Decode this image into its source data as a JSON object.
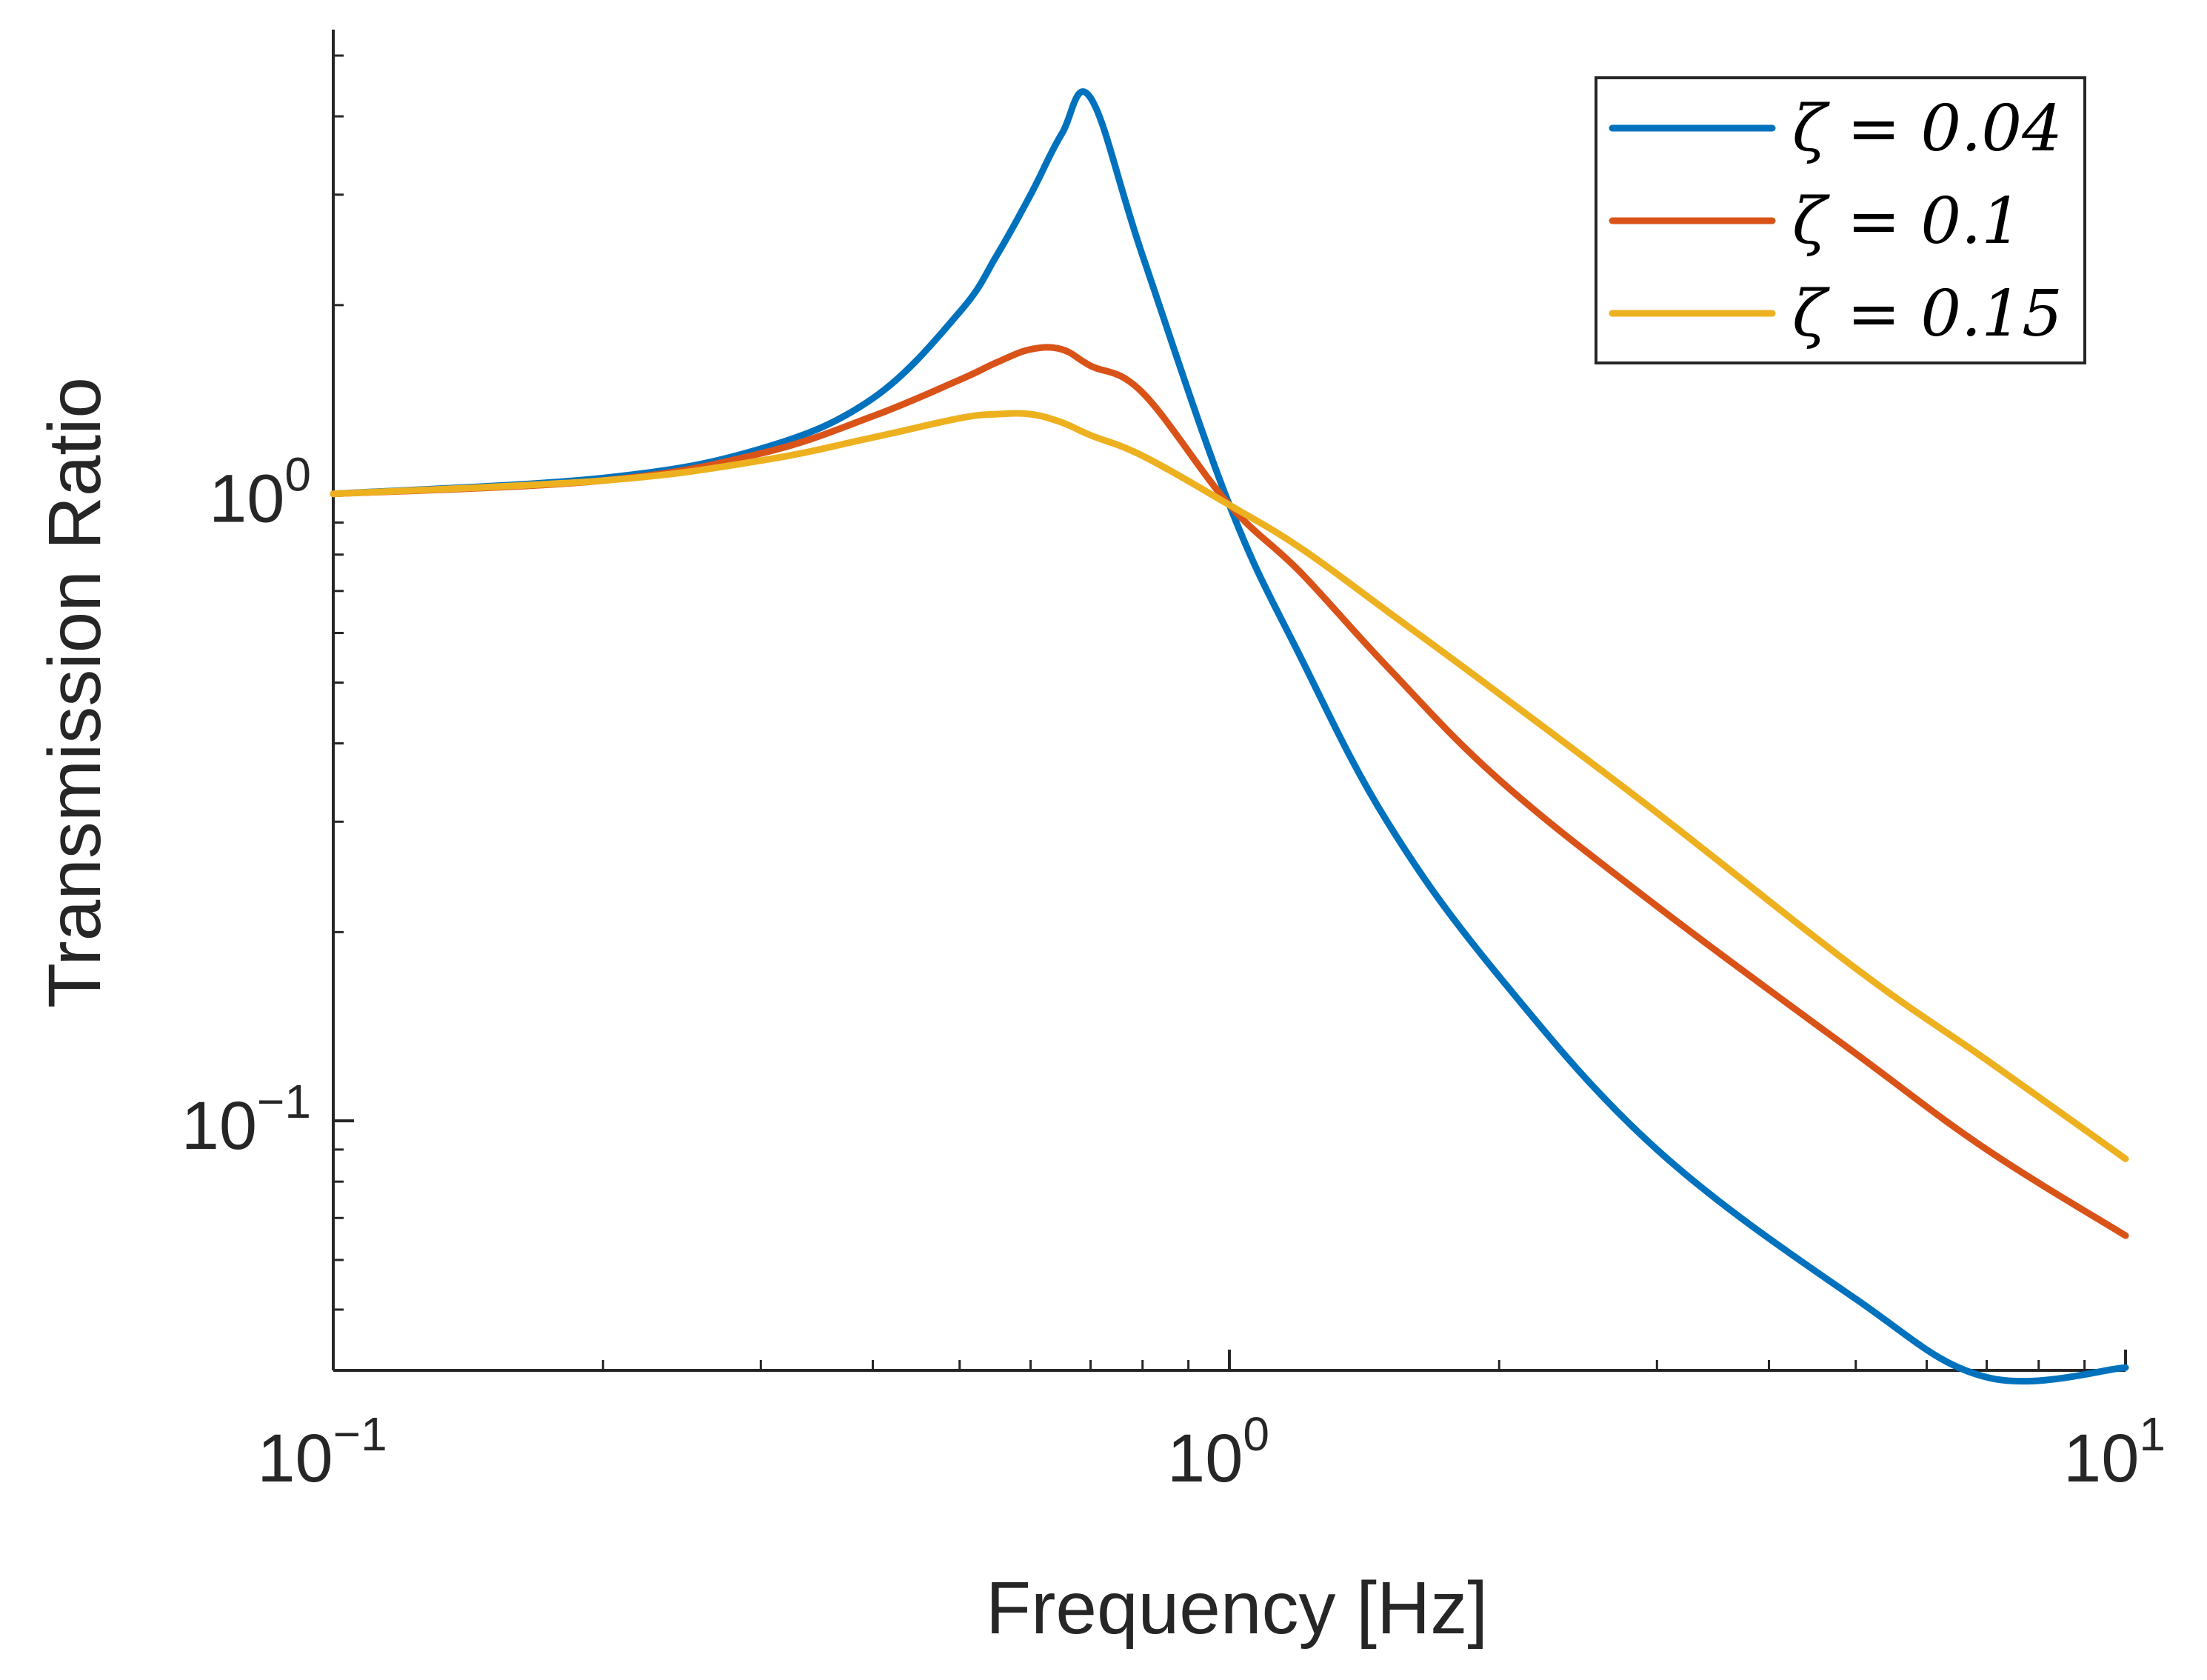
{
  "chart_data": {
    "type": "line",
    "title": "",
    "xlabel": "Frequency [Hz]",
    "ylabel": "Transmission Ratio",
    "xscale": "log",
    "yscale": "log",
    "xlim": [
      0.1,
      10
    ],
    "ylim": [
      0.04,
      5.5
    ],
    "grid": false,
    "legend_position": "top-right",
    "x_ticks": [
      {
        "value": 0.1,
        "base": "10",
        "exp": "−1"
      },
      {
        "value": 1,
        "base": "10",
        "exp": "0"
      },
      {
        "value": 10,
        "base": "10",
        "exp": "1"
      }
    ],
    "y_ticks": [
      {
        "value": 0.1,
        "base": "10",
        "exp": "−1"
      },
      {
        "value": 1,
        "base": "10",
        "exp": "0"
      }
    ],
    "series": [
      {
        "name": "ζ = 0.04",
        "color": "#0072bd",
        "x": [
          0.1,
          0.2,
          0.3,
          0.4,
          0.5,
          0.55,
          0.6,
          0.65,
          0.7,
          0.8,
          1.0,
          1.2,
          1.5,
          2.0,
          3.0,
          5.0,
          7.0,
          10.0
        ],
        "y": [
          1.0,
          1.06,
          1.18,
          1.42,
          1.95,
          2.4,
          3.0,
          3.75,
          4.28,
          2.4,
          0.96,
          0.55,
          0.3,
          0.17,
          0.09,
          0.052,
          0.039,
          0.0404
        ]
      },
      {
        "name": "ζ = 0.1",
        "color": "#d95319",
        "x": [
          0.1,
          0.2,
          0.3,
          0.4,
          0.5,
          0.55,
          0.6,
          0.65,
          0.7,
          0.8,
          1.0,
          1.2,
          1.5,
          2.0,
          3.0,
          5.0,
          7.0,
          10.0
        ],
        "y": [
          1.0,
          1.05,
          1.16,
          1.33,
          1.52,
          1.62,
          1.7,
          1.7,
          1.6,
          1.45,
          0.96,
          0.75,
          0.53,
          0.35,
          0.22,
          0.128,
          0.09,
          0.0656
        ]
      },
      {
        "name": "ζ = 0.15",
        "color": "#edb120",
        "x": [
          0.1,
          0.2,
          0.3,
          0.4,
          0.5,
          0.55,
          0.6,
          0.65,
          0.7,
          0.8,
          1.0,
          1.2,
          1.5,
          2.0,
          3.0,
          5.0,
          7.0,
          10.0
        ],
        "y": [
          1.0,
          1.05,
          1.13,
          1.23,
          1.32,
          1.34,
          1.34,
          1.3,
          1.24,
          1.15,
          0.96,
          0.82,
          0.65,
          0.48,
          0.31,
          0.175,
          0.125,
          0.087
        ]
      }
    ]
  }
}
